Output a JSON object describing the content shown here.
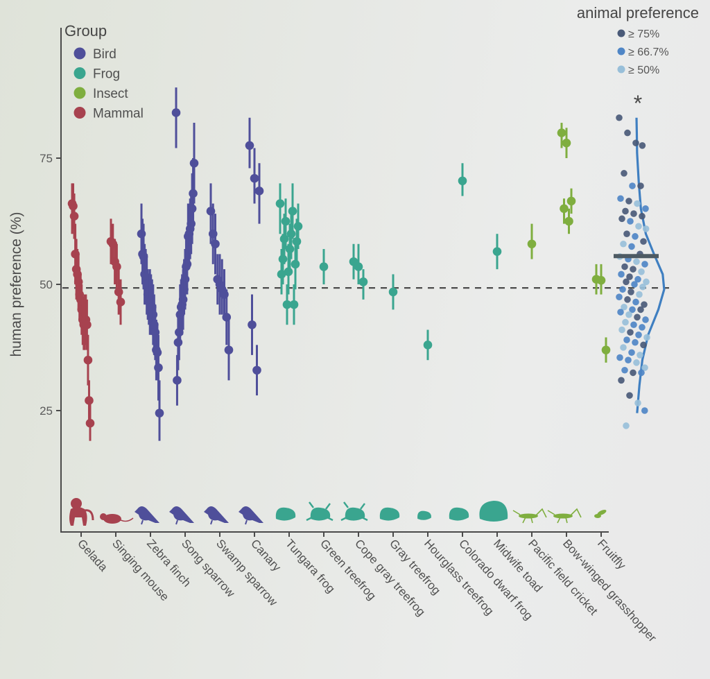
{
  "chart_data": {
    "type": "scatter",
    "title": "",
    "xlabel": "",
    "ylabel": "human preference (%)",
    "ylim": [
      0,
      100
    ],
    "yticks": [
      25,
      50,
      75
    ],
    "chance_line": 49.3,
    "grid": false,
    "group_legend": {
      "title": "Group",
      "placement": "top-left",
      "entries": [
        {
          "name": "Bird",
          "color": "#4f4f9a"
        },
        {
          "name": "Frog",
          "color": "#3aa58f"
        },
        {
          "name": "Insect",
          "color": "#7fae3f"
        },
        {
          "name": "Mammal",
          "color": "#a7424f"
        }
      ]
    },
    "animal_pref_legend": {
      "title": "animal preference",
      "placement": "top-right",
      "entries": [
        {
          "label": "≥ 75%",
          "color": "#4a5a78"
        },
        {
          "label": "≥ 66.7%",
          "color": "#4f86c6"
        },
        {
          "label": "≥ 50%",
          "color": "#98bfd9"
        }
      ]
    },
    "categories": [
      {
        "name": "Gelada",
        "group": "Mammal",
        "points": [
          [
            66,
            60,
            70
          ],
          [
            65.5,
            61,
            70
          ],
          [
            63.5,
            59,
            68
          ],
          [
            56,
            50,
            62
          ],
          [
            53,
            47,
            59
          ],
          [
            52,
            47,
            57
          ],
          [
            50.5,
            45,
            56
          ],
          [
            48,
            43,
            53
          ],
          [
            47,
            42,
            52
          ],
          [
            45,
            40,
            50
          ],
          [
            43,
            38,
            48
          ],
          [
            42,
            37,
            47
          ],
          [
            42.5,
            37,
            48
          ],
          [
            43,
            38,
            48
          ],
          [
            42,
            37,
            47
          ],
          [
            35,
            30,
            40
          ],
          [
            27,
            23,
            31
          ],
          [
            22.5,
            19,
            27
          ]
        ]
      },
      {
        "name": "Singing mouse",
        "group": "Mammal",
        "points": [
          [
            58.5,
            54,
            63
          ],
          [
            58,
            54,
            62
          ],
          [
            54.5,
            50,
            59
          ],
          [
            53.5,
            49,
            58
          ],
          [
            48.5,
            44,
            53
          ],
          [
            46.5,
            42,
            51
          ]
        ]
      },
      {
        "name": "Zebra finch",
        "group": "Bird",
        "points": [
          [
            60,
            54,
            66
          ],
          [
            56,
            50,
            63
          ],
          [
            55.5,
            49,
            62
          ],
          [
            52,
            46,
            58
          ],
          [
            51.5,
            46,
            57
          ],
          [
            50,
            44,
            56
          ],
          [
            48,
            43,
            53
          ],
          [
            47,
            42,
            52
          ],
          [
            46.5,
            40,
            53
          ],
          [
            46,
            40,
            52
          ],
          [
            45.5,
            40,
            51
          ],
          [
            44,
            38,
            50
          ],
          [
            42,
            36,
            48
          ],
          [
            40.5,
            35,
            46
          ],
          [
            37,
            31,
            43
          ],
          [
            36.5,
            31,
            42
          ],
          [
            33.5,
            27,
            40
          ],
          [
            24.5,
            19,
            31
          ]
        ]
      },
      {
        "name": "Song sparrow",
        "group": "Bird",
        "points": [
          [
            84,
            77,
            89
          ],
          [
            74,
            66,
            82
          ],
          [
            68,
            61,
            75
          ],
          [
            65,
            58,
            72
          ],
          [
            62,
            56,
            68
          ],
          [
            61,
            55,
            67
          ],
          [
            60,
            54,
            66
          ],
          [
            59.5,
            53,
            66
          ],
          [
            54,
            48,
            60
          ],
          [
            53.5,
            48,
            59
          ],
          [
            51,
            45,
            57
          ],
          [
            49,
            44,
            55
          ],
          [
            47,
            41,
            53
          ],
          [
            46,
            40,
            52
          ],
          [
            45.5,
            40,
            51
          ],
          [
            44,
            38,
            50
          ],
          [
            40.5,
            35,
            46
          ],
          [
            38.5,
            33,
            44
          ],
          [
            31,
            26,
            36
          ]
        ]
      },
      {
        "name": "Swamp sparrow",
        "group": "Bird",
        "points": [
          [
            64.5,
            58,
            70
          ],
          [
            60,
            54,
            66
          ],
          [
            58,
            52,
            64
          ],
          [
            51,
            46,
            56
          ],
          [
            50,
            44,
            56
          ],
          [
            49,
            44,
            55
          ],
          [
            48,
            43,
            53
          ],
          [
            43.5,
            38,
            49
          ],
          [
            37,
            31,
            43
          ]
        ]
      },
      {
        "name": "Canary",
        "group": "Bird",
        "points": [
          [
            77.5,
            73,
            83
          ],
          [
            71,
            66,
            77
          ],
          [
            68.5,
            62,
            74
          ],
          [
            42,
            36,
            48
          ],
          [
            33,
            28,
            38
          ]
        ]
      },
      {
        "name": "Tungara frog",
        "group": "Frog",
        "points": [
          [
            66,
            60,
            70
          ],
          [
            64.5,
            59,
            70
          ],
          [
            62.5,
            57,
            67
          ],
          [
            61.5,
            57,
            66
          ],
          [
            60,
            55,
            65
          ],
          [
            59,
            54,
            64
          ],
          [
            58.5,
            54,
            63
          ],
          [
            57,
            52,
            62
          ],
          [
            55,
            50,
            60
          ],
          [
            54,
            49,
            59
          ],
          [
            52.5,
            48,
            58
          ],
          [
            52,
            48,
            57
          ],
          [
            46,
            42,
            50
          ],
          [
            46,
            42,
            50
          ]
        ]
      },
      {
        "name": "Green treefrog",
        "group": "Frog",
        "points": [
          [
            53.5,
            50,
            57
          ]
        ]
      },
      {
        "name": "Cope gray treefrog",
        "group": "Frog",
        "points": [
          [
            54.5,
            51,
            58
          ],
          [
            53.5,
            50,
            58
          ],
          [
            50.5,
            47,
            53
          ]
        ]
      },
      {
        "name": "Gray treefrog",
        "group": "Frog",
        "points": [
          [
            48.5,
            45,
            52
          ]
        ]
      },
      {
        "name": "Hourglass treefrog",
        "group": "Frog",
        "points": [
          [
            38,
            35,
            41
          ]
        ]
      },
      {
        "name": "Colorado dwarf frog",
        "group": "Frog",
        "points": [
          [
            70.5,
            67.5,
            74
          ]
        ]
      },
      {
        "name": "Midwife toad",
        "group": "Frog",
        "points": [
          [
            56.5,
            53,
            60
          ]
        ]
      },
      {
        "name": "Pacific field cricket",
        "group": "Frog",
        "points": [
          [
            58,
            55,
            62
          ]
        ]
      },
      {
        "name": "Bow-winged grasshopper",
        "group": "Insect",
        "points": [
          [
            80,
            77,
            82
          ],
          [
            78,
            75,
            81
          ],
          [
            66.5,
            64,
            69
          ],
          [
            65,
            62,
            67
          ],
          [
            62.5,
            60,
            65
          ]
        ]
      },
      {
        "name": "Fruitfly",
        "group": "Insect",
        "points": [
          [
            51,
            48,
            54
          ],
          [
            37,
            34.5,
            39.5
          ]
        ]
      }
    ],
    "extra_insect": {
      "value": 50.8,
      "lo": 48,
      "hi": 54
    },
    "summary": {
      "mean": 55.6,
      "significance": "*",
      "density_color": "#3f7fc1",
      "mean_color": "#4d5a63",
      "density": [
        [
          24.5,
          0.02
        ],
        [
          30,
          0.1
        ],
        [
          35,
          0.2
        ],
        [
          40,
          0.4
        ],
        [
          45,
          0.75
        ],
        [
          49,
          0.95
        ],
        [
          52,
          0.9
        ],
        [
          56,
          0.6
        ],
        [
          60,
          0.32
        ],
        [
          65,
          0.15
        ],
        [
          70,
          0.08
        ],
        [
          76,
          0.02
        ],
        [
          80,
          0.01
        ],
        [
          83,
          0.0
        ]
      ],
      "points": [
        [
          83,
          "a"
        ],
        [
          80,
          "a"
        ],
        [
          78,
          "a"
        ],
        [
          77.5,
          "a"
        ],
        [
          72,
          "a"
        ],
        [
          69.5,
          "b"
        ],
        [
          69.5,
          "a"
        ],
        [
          67,
          "b"
        ],
        [
          66.5,
          "a"
        ],
        [
          66,
          "c"
        ],
        [
          65,
          "b"
        ],
        [
          64.5,
          "a"
        ],
        [
          64,
          "a"
        ],
        [
          63.5,
          "a"
        ],
        [
          63,
          "a"
        ],
        [
          62.5,
          "b"
        ],
        [
          61.5,
          "c"
        ],
        [
          61,
          "c"
        ],
        [
          60,
          "a"
        ],
        [
          59.5,
          "b"
        ],
        [
          58.5,
          "a"
        ],
        [
          58,
          "c"
        ],
        [
          57.5,
          "b"
        ],
        [
          56,
          "a"
        ],
        [
          55.5,
          "c"
        ],
        [
          55,
          "b"
        ],
        [
          54.5,
          "c"
        ],
        [
          54,
          "b"
        ],
        [
          53.5,
          "a"
        ],
        [
          53,
          "a"
        ],
        [
          52.5,
          "c"
        ],
        [
          52,
          "b"
        ],
        [
          51.5,
          "a"
        ],
        [
          51,
          "b"
        ],
        [
          50.5,
          "c"
        ],
        [
          50.5,
          "a"
        ],
        [
          50,
          "b"
        ],
        [
          49.5,
          "c"
        ],
        [
          49,
          "b"
        ],
        [
          48.5,
          "a"
        ],
        [
          48,
          "c"
        ],
        [
          47.5,
          "b"
        ],
        [
          47,
          "a"
        ],
        [
          46.5,
          "b"
        ],
        [
          46,
          "a"
        ],
        [
          45.5,
          "c"
        ],
        [
          45,
          "b"
        ],
        [
          45,
          "a"
        ],
        [
          44.5,
          "b"
        ],
        [
          44,
          "c"
        ],
        [
          43.5,
          "a"
        ],
        [
          43,
          "b"
        ],
        [
          42.5,
          "c"
        ],
        [
          42,
          "b"
        ],
        [
          41.5,
          "b"
        ],
        [
          41,
          "c"
        ],
        [
          40.5,
          "a"
        ],
        [
          40,
          "b"
        ],
        [
          39.5,
          "c"
        ],
        [
          39,
          "b"
        ],
        [
          38.5,
          "b"
        ],
        [
          38,
          "a"
        ],
        [
          37.5,
          "c"
        ],
        [
          36.5,
          "b"
        ],
        [
          36,
          "c"
        ],
        [
          35.5,
          "b"
        ],
        [
          35,
          "b"
        ],
        [
          34.5,
          "c"
        ],
        [
          33.5,
          "c"
        ],
        [
          33,
          "b"
        ],
        [
          32.5,
          "a"
        ],
        [
          32.5,
          "b"
        ],
        [
          31,
          "a"
        ],
        [
          28,
          "a"
        ],
        [
          26.5,
          "c"
        ],
        [
          25,
          "b"
        ],
        [
          22,
          "c"
        ]
      ]
    },
    "silhouettes": [
      "gelada",
      "mouse",
      "bird",
      "bird",
      "bird",
      "bird",
      "frog",
      "treefrog",
      "treefrog",
      "frog",
      "smallfrog",
      "frog",
      "toad",
      "cricket",
      "grasshopper",
      "fly"
    ]
  }
}
